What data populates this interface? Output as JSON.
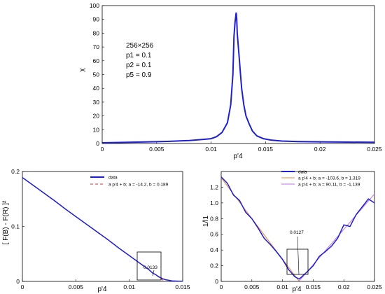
{
  "chart_data": [
    {
      "type": "line",
      "title": "",
      "xlabel": "p'4",
      "ylabel": "χ",
      "xlim": [
        0,
        0.025
      ],
      "ylim": [
        0,
        100
      ],
      "xticks": [
        "0",
        "0.005",
        "0.01",
        "0.015",
        "0.02",
        "0.025"
      ],
      "yticks": [
        "0",
        "10",
        "20",
        "30",
        "40",
        "50",
        "60",
        "70",
        "80",
        "90",
        "100"
      ],
      "annotations": [
        "256×256",
        "p1 = 0.1",
        "p2 = 0.1",
        "p5 = 0.9"
      ],
      "grid": false,
      "colors": {
        "data": "#1f1fd0"
      },
      "series": [
        {
          "name": "",
          "x": [
            0,
            0.002,
            0.004,
            0.006,
            0.008,
            0.009,
            0.01,
            0.0105,
            0.011,
            0.0115,
            0.0118,
            0.012,
            0.0121,
            0.0122,
            0.0123,
            0.01235,
            0.0124,
            0.0125,
            0.0126,
            0.0127,
            0.0128,
            0.013,
            0.0132,
            0.0135,
            0.0138,
            0.0142,
            0.0148,
            0.0155,
            0.0165,
            0.018,
            0.02,
            0.0225,
            0.025
          ],
          "y": [
            0.5,
            0.8,
            1.1,
            1.5,
            2.2,
            2.8,
            3.5,
            5.0,
            8.0,
            15.0,
            28.0,
            50.0,
            78.0,
            88.0,
            95.0,
            90.0,
            80.0,
            70.0,
            60.0,
            50.0,
            40.0,
            28.0,
            20.0,
            14.0,
            9.0,
            5.5,
            3.5,
            2.5,
            1.8,
            1.4,
            1.2,
            1.0,
            0.9
          ]
        }
      ]
    },
    {
      "type": "line",
      "title": "",
      "xlabel": "p'4",
      "ylabel": "[ F(B) - F(R) ]²",
      "xlim": [
        0,
        0.015
      ],
      "ylim": [
        0,
        0.2
      ],
      "xticks": [
        "0",
        "0.005",
        "0.01",
        "0.015"
      ],
      "yticks": [
        "0",
        "0.1",
        "0.2"
      ],
      "legend": {
        "position": "top-right",
        "entries": [
          "data",
          "a p'4 + b;  a = -14.2,  b = 0.189"
        ]
      },
      "annotations": [
        "0.0133"
      ],
      "colors": {
        "data": "#1f1fd0",
        "fit": "#d03030"
      },
      "series": [
        {
          "name": "data",
          "x": [
            0,
            0.001,
            0.002,
            0.003,
            0.004,
            0.005,
            0.006,
            0.007,
            0.008,
            0.009,
            0.01,
            0.011,
            0.0118,
            0.0122,
            0.0125,
            0.0128,
            0.0131,
            0.0134,
            0.0137,
            0.014,
            0.0145,
            0.015
          ],
          "y": [
            0.189,
            0.175,
            0.161,
            0.147,
            0.132,
            0.118,
            0.104,
            0.09,
            0.076,
            0.061,
            0.047,
            0.033,
            0.022,
            0.015,
            0.012,
            0.008,
            0.005,
            0.003,
            0.002,
            0.001,
            0.0005,
            0.0002
          ]
        },
        {
          "name": "a p'4 + b;  a = -14.2,  b = 0.189",
          "x": [
            0,
            0.0133
          ],
          "y": [
            0.189,
            0.0001
          ]
        }
      ]
    },
    {
      "type": "line",
      "title": "",
      "xlabel": "p'4",
      "ylabel": "1/l1",
      "xlim": [
        0,
        0.025
      ],
      "ylim": [
        0,
        1.4
      ],
      "xticks": [
        "0",
        "0.005",
        "0.01",
        "0.015",
        "0.02",
        "0.025"
      ],
      "yticks": [
        "0",
        "0.2",
        "0.4",
        "0.6",
        "0.8",
        "1.0",
        "1.2"
      ],
      "legend": {
        "position": "top-right",
        "entries": [
          "data",
          "a p'4 + b;  a = -103.6,  b =  1.319",
          "a p'4 + b;  a =   90.11,  b = -1.139"
        ]
      },
      "annotations": [
        "0.0127"
      ],
      "colors": {
        "data": "#1f1fd0",
        "fit1": "#e08a3a",
        "fit2": "#c070e0"
      },
      "series": [
        {
          "name": "data",
          "x": [
            0,
            0.001,
            0.002,
            0.003,
            0.004,
            0.005,
            0.006,
            0.007,
            0.008,
            0.009,
            0.01,
            0.011,
            0.012,
            0.0127,
            0.013,
            0.014,
            0.015,
            0.016,
            0.017,
            0.018,
            0.019,
            0.02,
            0.021,
            0.022,
            0.023,
            0.024,
            0.025
          ],
          "y": [
            1.33,
            1.25,
            1.1,
            1.03,
            0.88,
            0.8,
            0.68,
            0.55,
            0.47,
            0.38,
            0.28,
            0.15,
            0.06,
            0.03,
            0.05,
            0.12,
            0.2,
            0.32,
            0.38,
            0.45,
            0.55,
            0.72,
            0.7,
            0.85,
            0.95,
            1.05,
            1.0
          ]
        },
        {
          "name": "a p'4 + b;  a = -103.6,  b =  1.319",
          "x": [
            0,
            0.0127
          ],
          "y": [
            1.319,
            0.003
          ]
        },
        {
          "name": "a p'4 + b;  a =   90.11,  b = -1.139",
          "x": [
            0.0127,
            0.025
          ],
          "y": [
            0.005,
            1.114
          ]
        }
      ]
    }
  ]
}
